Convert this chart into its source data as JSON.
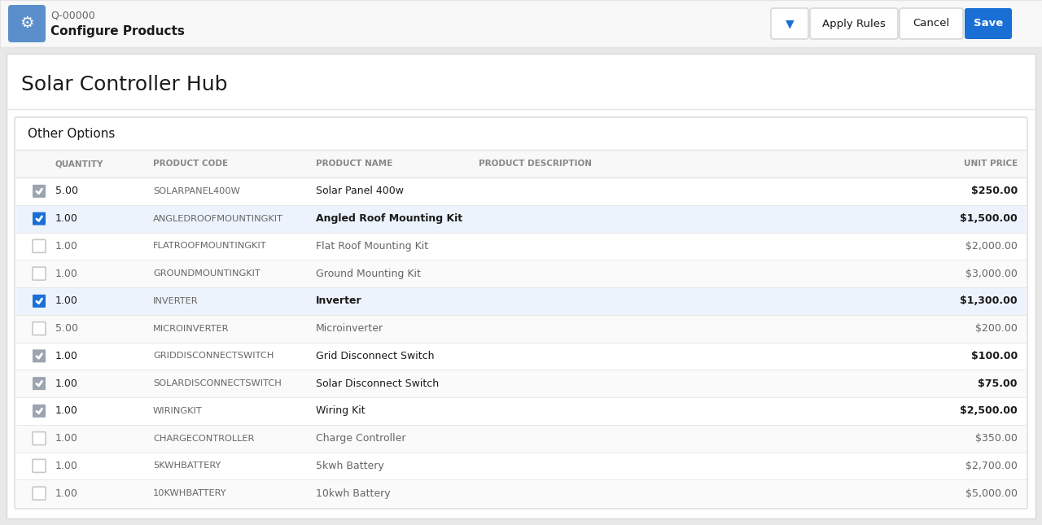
{
  "title": "Solar Controller Hub",
  "header_label": "Q-00000",
  "header_title": "Configure Products",
  "section_title": "Other Options",
  "col_headers": [
    "QUANTITY",
    "PRODUCT CODE",
    "PRODUCT NAME",
    "PRODUCT DESCRIPTION",
    "UNIT PRICE"
  ],
  "rows": [
    {
      "checked": "grey",
      "qty": "5.00",
      "code": "SOLARPANEL400W",
      "name": "Solar Panel 400w",
      "desc": "",
      "price": "$250.00"
    },
    {
      "checked": "blue",
      "qty": "1.00",
      "code": "ANGLEDROOFMOUNTINGKIT",
      "name": "Angled Roof Mounting Kit",
      "desc": "",
      "price": "$1,500.00"
    },
    {
      "checked": "none",
      "qty": "1.00",
      "code": "FLATROOFMOUNTINGKIT",
      "name": "Flat Roof Mounting Kit",
      "desc": "",
      "price": "$2,000.00"
    },
    {
      "checked": "none",
      "qty": "1.00",
      "code": "GROUNDMOUNTINGKIT",
      "name": "Ground Mounting Kit",
      "desc": "",
      "price": "$3,000.00"
    },
    {
      "checked": "blue",
      "qty": "1.00",
      "code": "INVERTER",
      "name": "Inverter",
      "desc": "",
      "price": "$1,300.00"
    },
    {
      "checked": "none",
      "qty": "5.00",
      "code": "MICROINVERTER",
      "name": "Microinverter",
      "desc": "",
      "price": "$200.00"
    },
    {
      "checked": "grey",
      "qty": "1.00",
      "code": "GRIDDISCONNECTSWITCH",
      "name": "Grid Disconnect Switch",
      "desc": "",
      "price": "$100.00"
    },
    {
      "checked": "grey",
      "qty": "1.00",
      "code": "SOLARDISCONNECTSWITCH",
      "name": "Solar Disconnect Switch",
      "desc": "",
      "price": "$75.00"
    },
    {
      "checked": "grey",
      "qty": "1.00",
      "code": "WIRINGKIT",
      "name": "Wiring Kit",
      "desc": "",
      "price": "$2,500.00"
    },
    {
      "checked": "none",
      "qty": "1.00",
      "code": "CHARGECONTROLLER",
      "name": "Charge Controller",
      "desc": "",
      "price": "$350.00"
    },
    {
      "checked": "none",
      "qty": "1.00",
      "code": "5KWHBATTERY",
      "name": "5kwh Battery",
      "desc": "",
      "price": "$2,700.00"
    },
    {
      "checked": "none",
      "qty": "1.00",
      "code": "10KWHBATTERY",
      "name": "10kwh Battery",
      "desc": "",
      "price": "$5,000.00"
    }
  ],
  "bg_color": "#f0f0f0",
  "card_color": "#ffffff",
  "header_bg": "#f8f8f8",
  "border_color": "#d8d8d8",
  "text_dark": "#1a1a1a",
  "text_medium": "#666666",
  "text_light": "#888888",
  "blue_btn": "#1a6fd4",
  "blue_btn_text": "#ffffff",
  "outline_btn_text": "#1a6fd4",
  "row_blue_color": "#edf3fd",
  "checked_grey": "#9ba5b0",
  "checked_blue": "#1a6fd4",
  "header_stripe": "#f8f8f8",
  "divider_color": "#e5e5e5",
  "icon_bg": "#5b8fcc",
  "page_bg": "#e8e8e8"
}
